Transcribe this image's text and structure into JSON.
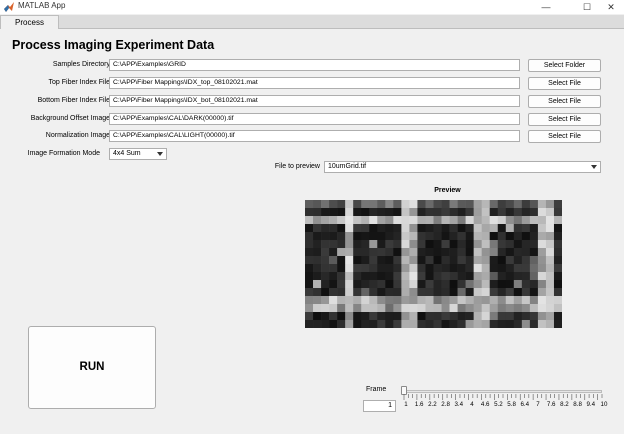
{
  "window": {
    "title": "MATLAB App",
    "minimize_glyph": "—",
    "maximize_glyph": "☐",
    "close_glyph": "✕"
  },
  "tabs": [
    {
      "label": "Process Images"
    }
  ],
  "heading": "Process Imaging Experiment Data",
  "fields": [
    {
      "label": "Samples Directory",
      "value": "C:\\APP\\Examples\\GRID",
      "button": "Select Folder"
    },
    {
      "label": "Top Fiber Index File",
      "value": "C:\\APP\\Fiber Mappings\\IDX_top_08102021.mat",
      "button": "Select File"
    },
    {
      "label": "Bottom Fiber Index File",
      "value": "C:\\APP\\Fiber Mappings\\IDX_bot_08102021.mat",
      "button": "Select File"
    },
    {
      "label": "Background Offset Image",
      "value": "C:\\APP\\Examples\\CAL\\DARK(00000).tif",
      "button": "Select File"
    },
    {
      "label": "Normalization Image",
      "value": "C:\\APP\\Examples\\CAL\\LIGHT(00000).tif",
      "button": "Select File"
    }
  ],
  "image_formation": {
    "label": "Image Formation Mode",
    "selected": "4x4 Sum"
  },
  "file_preview": {
    "label": "File to preview",
    "selected": "10umGrid.tif"
  },
  "preview": {
    "title": "Preview"
  },
  "run_button": "RUN",
  "frame": {
    "label": "Frame",
    "value": "1",
    "min": 1,
    "max": 10,
    "current": 1,
    "tick_labels": [
      "1",
      "1.6",
      "2.2",
      "2.8",
      "3.4",
      "4",
      "4.6",
      "5.2",
      "5.8",
      "6.4",
      "7",
      "7.6",
      "8.2",
      "8.8",
      "9.4",
      "10"
    ]
  }
}
